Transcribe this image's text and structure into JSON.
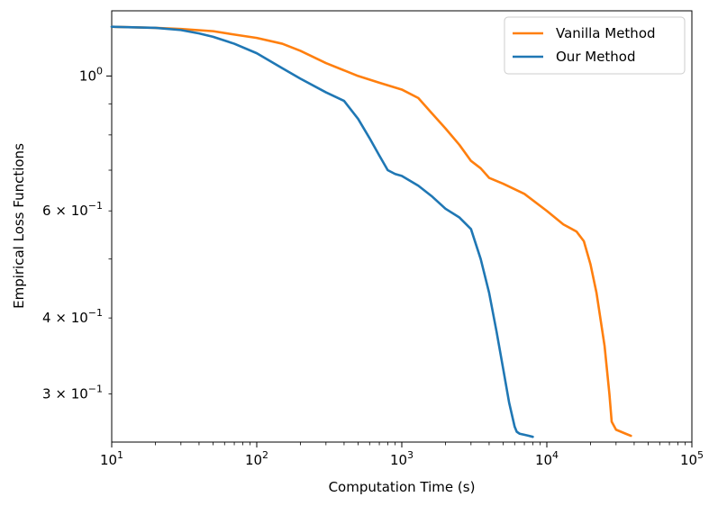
{
  "chart_data": {
    "type": "line",
    "title": "",
    "xlabel": "Computation Time (s)",
    "ylabel": "Empirical Loss Functions",
    "xscale": "log",
    "yscale": "log",
    "xlim": [
      10,
      100000
    ],
    "ylim": [
      0.25,
      1.28
    ],
    "grid": false,
    "legend_position": "top-right",
    "x_ticks": [
      {
        "value": 10,
        "base": "10",
        "exp": "1"
      },
      {
        "value": 100,
        "base": "10",
        "exp": "2"
      },
      {
        "value": 1000,
        "base": "10",
        "exp": "3"
      },
      {
        "value": 10000,
        "base": "10",
        "exp": "4"
      },
      {
        "value": 100000,
        "base": "10",
        "exp": "5"
      }
    ],
    "y_ticks": [
      {
        "value": 1.0,
        "mant": "",
        "base": "10",
        "exp": "0"
      },
      {
        "value": 0.6,
        "mant": "6 × ",
        "base": "10",
        "exp": "−1"
      },
      {
        "value": 0.4,
        "mant": "4 × ",
        "base": "10",
        "exp": "−1"
      },
      {
        "value": 0.3,
        "mant": "3 × ",
        "base": "10",
        "exp": "−1"
      }
    ],
    "series": [
      {
        "name": "Vanilla Method",
        "color": "#ff7f0e",
        "x": [
          10,
          20,
          30,
          50,
          70,
          100,
          150,
          200,
          300,
          500,
          700,
          1000,
          1300,
          1600,
          2000,
          2500,
          3000,
          3500,
          4000,
          5000,
          7000,
          10000,
          13000,
          16000,
          18000,
          20000,
          22000,
          25000,
          27000,
          28000,
          30000,
          35000,
          38000
        ],
        "y": [
          1.205,
          1.2,
          1.195,
          1.185,
          1.17,
          1.155,
          1.13,
          1.1,
          1.05,
          1.0,
          0.975,
          0.95,
          0.92,
          0.87,
          0.82,
          0.77,
          0.725,
          0.705,
          0.68,
          0.665,
          0.64,
          0.6,
          0.57,
          0.555,
          0.535,
          0.49,
          0.44,
          0.36,
          0.3,
          0.27,
          0.262,
          0.258,
          0.256
        ]
      },
      {
        "name": "Our Method",
        "color": "#1f77b4",
        "x": [
          10,
          20,
          30,
          40,
          50,
          70,
          100,
          150,
          200,
          300,
          400,
          500,
          600,
          700,
          800,
          900,
          1000,
          1300,
          1600,
          2000,
          2500,
          3000,
          3500,
          4000,
          4500,
          5000,
          5500,
          6000,
          6200,
          6500,
          7000,
          7500,
          8000
        ],
        "y": [
          1.205,
          1.2,
          1.19,
          1.175,
          1.16,
          1.13,
          1.09,
          1.03,
          0.99,
          0.94,
          0.91,
          0.85,
          0.79,
          0.74,
          0.7,
          0.69,
          0.685,
          0.66,
          0.635,
          0.605,
          0.585,
          0.56,
          0.5,
          0.44,
          0.38,
          0.33,
          0.29,
          0.265,
          0.26,
          0.258,
          0.257,
          0.256,
          0.255
        ]
      }
    ]
  }
}
